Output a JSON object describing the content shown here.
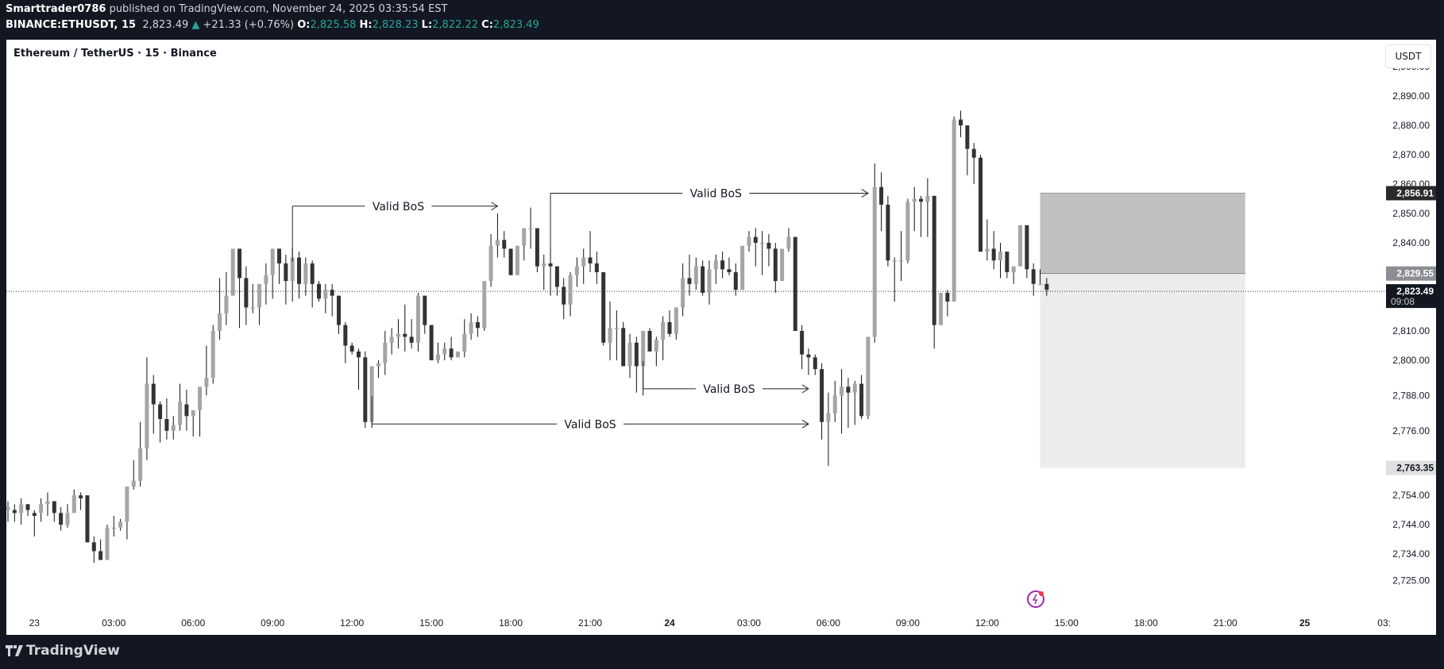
{
  "header": {
    "author": "Smarttrader0786",
    "published_text": "published on TradingView.com, November 24, 2025 03:35:54 EST",
    "symbol": "BINANCE:ETHUSDT, 15",
    "last_price": "2,823.49",
    "change_icon": "triangle-up-icon",
    "change": "+21.33 (+0.76%)",
    "o_label": "O:",
    "o_value": "2,825.58",
    "h_label": "H:",
    "h_value": "2,828.23",
    "l_label": "L:",
    "l_value": "2,822.22",
    "c_label": "C:",
    "c_value": "2,823.49"
  },
  "chart": {
    "title": "Ethereum / TetherUS · 15 · Binance",
    "currency_button": "USDT",
    "colors": {
      "up": "#a5a5a5",
      "down": "#333333",
      "box_top": "#c0c0c0",
      "box_bottom": "#ececec",
      "header_bg": "#131722",
      "teal": "#26a69a"
    },
    "price_labels": [
      {
        "text": "2,856.91",
        "price": 2856.91,
        "style": "dark"
      },
      {
        "text": "2,829.55",
        "price": 2829.55,
        "style": "grey"
      },
      {
        "text": "2,823.49",
        "sub": "09:08",
        "price": 2823.49,
        "style": "navy"
      },
      {
        "text": "2,763.35",
        "price": 2763.35,
        "style": "light"
      }
    ],
    "annotation_label": "Valid BoS",
    "footer_brand": "TradingView"
  },
  "chart_data": {
    "type": "candlestick",
    "title": "Ethereum / TetherUS · 15 · Binance",
    "symbol": "BINANCE:ETHUSDT",
    "interval": "15",
    "yaxis_ticks": [
      "2,900.00",
      "2,890.00",
      "2,880.00",
      "2,870.00",
      "2,860.00",
      "2,850.00",
      "2,840.00",
      "2,810.00",
      "2,800.00",
      "2,788.00",
      "2,776.00",
      "2,754.00",
      "2,744.00",
      "2,734.00",
      "2,725.00"
    ],
    "ytick_values": [
      2900,
      2890,
      2880,
      2870,
      2860,
      2850,
      2840,
      2810,
      2800,
      2788,
      2776,
      2754,
      2744,
      2734,
      2725
    ],
    "xaxis_ticks": [
      "23",
      "03:00",
      "06:00",
      "09:00",
      "12:00",
      "15:00",
      "18:00",
      "21:00",
      "24",
      "03:00",
      "06:00",
      "09:00",
      "12:00",
      "15:00",
      "18:00",
      "21:00",
      "25",
      "03:"
    ],
    "xtick_index": [
      4,
      16,
      28,
      40,
      52,
      64,
      76,
      88,
      100,
      112,
      124,
      136,
      148,
      160,
      172,
      184,
      196,
      208
    ],
    "current_price": 2823.49,
    "countdown": "09:08",
    "box": {
      "top": 2856.91,
      "mid": 2829.55,
      "bottom": 2763.35,
      "start_index": 156,
      "end_index": 187
    },
    "annotations": [
      {
        "label": "Valid BoS",
        "price": 2852.5,
        "from_index": 43,
        "to_index": 74,
        "label_index": 59
      },
      {
        "label": "Valid BoS",
        "price": 2856.9,
        "from_index": 82,
        "to_index": 130,
        "label_index": 107
      },
      {
        "label": "Valid BoS",
        "price": 2790.3,
        "from_index": 96,
        "to_index": 121,
        "label_index": 109
      },
      {
        "label": "Valid BoS",
        "price": 2778.3,
        "from_index": 55,
        "to_index": 121,
        "label_index": 88
      }
    ],
    "candles": [
      [
        2749,
        2752,
        2745,
        2750
      ],
      [
        2749,
        2751,
        2745,
        2748
      ],
      [
        2748,
        2753,
        2744,
        2751
      ],
      [
        2751,
        2751,
        2747,
        2749
      ],
      [
        2748,
        2749,
        2740,
        2747
      ],
      [
        2748,
        2753,
        2745,
        2751
      ],
      [
        2751,
        2755,
        2747,
        2752
      ],
      [
        2752,
        2752,
        2745,
        2748
      ],
      [
        2748,
        2750,
        2742,
        2744
      ],
      [
        2744,
        2751,
        2743,
        2748
      ],
      [
        2748,
        2756,
        2748,
        2754
      ],
      [
        2754,
        2755,
        2749,
        2753
      ],
      [
        2754,
        2754,
        2738,
        2738
      ],
      [
        2738,
        2740,
        2731,
        2735
      ],
      [
        2735,
        2739,
        2733,
        2732
      ],
      [
        2732,
        2744,
        2732,
        2743
      ],
      [
        2743,
        2747,
        2740,
        2743
      ],
      [
        2743,
        2746,
        2742,
        2745
      ],
      [
        2745,
        2757,
        2739,
        2757
      ],
      [
        2757,
        2766,
        2756,
        2759
      ],
      [
        2759,
        2779,
        2757,
        2770
      ],
      [
        2770,
        2801,
        2766,
        2792
      ],
      [
        2792,
        2795,
        2775,
        2785
      ],
      [
        2785,
        2786,
        2772,
        2780
      ],
      [
        2780,
        2787,
        2773,
        2776
      ],
      [
        2776,
        2781,
        2773,
        2778
      ],
      [
        2778,
        2792,
        2776,
        2786
      ],
      [
        2785,
        2790,
        2776,
        2781
      ],
      [
        2781,
        2782,
        2774,
        2783
      ],
      [
        2783,
        2786,
        2774,
        2791
      ],
      [
        2791,
        2805,
        2788,
        2794
      ],
      [
        2794,
        2812,
        2792,
        2810
      ],
      [
        2810,
        2828,
        2807,
        2816
      ],
      [
        2816,
        2830,
        2812,
        2822
      ],
      [
        2822,
        2835,
        2822,
        2838
      ],
      [
        2838,
        2833,
        2811,
        2828
      ],
      [
        2828,
        2832,
        2812,
        2818
      ],
      [
        2818,
        2826,
        2816,
        2818
      ],
      [
        2818,
        2826,
        2812,
        2826
      ],
      [
        2826,
        2833,
        2819,
        2829
      ],
      [
        2829,
        2836,
        2821,
        2838
      ],
      [
        2838,
        2838,
        2826,
        2833
      ],
      [
        2833,
        2836,
        2819,
        2827
      ],
      [
        2827,
        2838,
        2820,
        2835
      ],
      [
        2835,
        2837,
        2821,
        2826
      ],
      [
        2826,
        2835,
        2822,
        2833
      ],
      [
        2833,
        2834,
        2818,
        2826
      ],
      [
        2826,
        2827,
        2820,
        2821
      ],
      [
        2821,
        2826,
        2816,
        2824
      ],
      [
        2824,
        2826,
        2815,
        2822
      ],
      [
        2822,
        2822,
        2809,
        2812
      ],
      [
        2812,
        2813,
        2799,
        2805
      ],
      [
        2805,
        2806,
        2802,
        2803
      ],
      [
        2803,
        2804,
        2790,
        2801
      ],
      [
        2801,
        2803,
        2777,
        2779
      ],
      [
        2779,
        2796,
        2777,
        2798
      ],
      [
        2798,
        2800,
        2794,
        2799
      ],
      [
        2799,
        2810,
        2795,
        2806
      ],
      [
        2806,
        2811,
        2802,
        2808
      ],
      [
        2808,
        2814,
        2804,
        2809
      ],
      [
        2809,
        2819,
        2803,
        2808
      ],
      [
        2808,
        2814,
        2804,
        2806
      ],
      [
        2806,
        2823,
        2803,
        2822
      ],
      [
        2822,
        2822,
        2809,
        2812
      ],
      [
        2812,
        2812,
        2801,
        2800
      ],
      [
        2800,
        2806,
        2799,
        2802
      ],
      [
        2802,
        2806,
        2800,
        2804
      ],
      [
        2804,
        2808,
        2800,
        2801
      ],
      [
        2801,
        2803,
        2801,
        2803
      ],
      [
        2803,
        2814,
        2801,
        2809
      ],
      [
        2809,
        2816,
        2807,
        2813
      ],
      [
        2813,
        2815,
        2808,
        2811
      ],
      [
        2811,
        2825,
        2810,
        2827
      ],
      [
        2827,
        2843,
        2825,
        2839
      ],
      [
        2839,
        2850,
        2835,
        2841
      ],
      [
        2841,
        2844,
        2835,
        2838
      ],
      [
        2838,
        2838,
        2829,
        2829
      ],
      [
        2829,
        2839,
        2829,
        2839
      ],
      [
        2839,
        2843,
        2834,
        2845
      ],
      [
        2845,
        2852,
        2838,
        2845
      ],
      [
        2845,
        2845,
        2830,
        2832
      ],
      [
        2832,
        2836,
        2824,
        2833
      ],
      [
        2833,
        2838,
        2822,
        2832
      ],
      [
        2832,
        2832,
        2822,
        2825
      ],
      [
        2825,
        2828,
        2814,
        2819
      ],
      [
        2819,
        2830,
        2815,
        2829
      ],
      [
        2829,
        2835,
        2825,
        2832
      ],
      [
        2832,
        2838,
        2826,
        2835
      ],
      [
        2835,
        2844,
        2830,
        2833
      ],
      [
        2833,
        2837,
        2826,
        2830
      ],
      [
        2830,
        2830,
        2805,
        2806
      ],
      [
        2806,
        2820,
        2800,
        2811
      ],
      [
        2811,
        2817,
        2800,
        2811
      ],
      [
        2811,
        2813,
        2798,
        2798
      ],
      [
        2798,
        2809,
        2794,
        2806
      ],
      [
        2806,
        2808,
        2789,
        2798
      ],
      [
        2798,
        2810,
        2788,
        2810
      ],
      [
        2810,
        2811,
        2805,
        2803
      ],
      [
        2803,
        2808,
        2798,
        2807
      ],
      [
        2807,
        2815,
        2800,
        2813
      ],
      [
        2813,
        2817,
        2808,
        2809
      ],
      [
        2809,
        2818,
        2807,
        2818
      ],
      [
        2818,
        2833,
        2815,
        2828
      ],
      [
        2828,
        2836,
        2822,
        2826
      ],
      [
        2826,
        2835,
        2824,
        2832
      ],
      [
        2832,
        2834,
        2822,
        2823
      ],
      [
        2823,
        2834,
        2819,
        2831
      ],
      [
        2831,
        2836,
        2826,
        2834
      ],
      [
        2834,
        2837,
        2828,
        2831
      ],
      [
        2831,
        2835,
        2829,
        2830
      ],
      [
        2830,
        2833,
        2822,
        2824
      ],
      [
        2824,
        2838,
        2826,
        2839
      ],
      [
        2839,
        2844,
        2837,
        2842
      ],
      [
        2842,
        2845,
        2832,
        2840
      ],
      [
        2840,
        2844,
        2829,
        2840
      ],
      [
        2840,
        2843,
        2832,
        2838
      ],
      [
        2838,
        2840,
        2823,
        2827
      ],
      [
        2827,
        2835,
        2827,
        2838
      ],
      [
        2838,
        2845,
        2837,
        2842
      ],
      [
        2842,
        2842,
        2810,
        2810
      ],
      [
        2810,
        2812,
        2797,
        2802
      ],
      [
        2802,
        2804,
        2795,
        2801
      ],
      [
        2801,
        2802,
        2795,
        2797
      ],
      [
        2797,
        2799,
        2773,
        2779
      ],
      [
        2779,
        2789,
        2764,
        2782
      ],
      [
        2782,
        2793,
        2779,
        2788
      ],
      [
        2788,
        2797,
        2775,
        2791
      ],
      [
        2791,
        2794,
        2777,
        2789
      ],
      [
        2789,
        2793,
        2778,
        2792
      ],
      [
        2792,
        2795,
        2780,
        2781
      ],
      [
        2781,
        2807,
        2780,
        2808
      ],
      [
        2808,
        2867,
        2806,
        2859
      ],
      [
        2859,
        2864,
        2844,
        2853
      ],
      [
        2853,
        2856,
        2832,
        2834
      ],
      [
        2834,
        2835,
        2820,
        2834
      ],
      [
        2834,
        2844,
        2827,
        2834
      ],
      [
        2834,
        2855,
        2833,
        2854
      ],
      [
        2854,
        2859,
        2844,
        2855
      ],
      [
        2855,
        2856,
        2842,
        2854
      ],
      [
        2854,
        2862,
        2842,
        2856
      ],
      [
        2856,
        2856,
        2804,
        2812
      ],
      [
        2812,
        2822,
        2812,
        2823
      ],
      [
        2823,
        2824,
        2815,
        2820
      ],
      [
        2820,
        2883,
        2820,
        2882
      ],
      [
        2882,
        2885,
        2876,
        2880
      ],
      [
        2880,
        2879,
        2863,
        2872
      ],
      [
        2872,
        2874,
        2860,
        2869
      ],
      [
        2869,
        2870,
        2852,
        2837
      ],
      [
        2837,
        2848,
        2834,
        2838
      ],
      [
        2838,
        2844,
        2831,
        2834
      ],
      [
        2834,
        2840,
        2828,
        2837
      ],
      [
        2837,
        2837,
        2828,
        2830
      ],
      [
        2830,
        2832,
        2826,
        2832
      ],
      [
        2832,
        2846,
        2832,
        2846
      ],
      [
        2846,
        2846,
        2828,
        2831
      ],
      [
        2831,
        2833,
        2822,
        2826
      ],
      [
        2826,
        2831,
        2826,
        2826
      ],
      [
        2826,
        2828,
        2822,
        2824
      ]
    ]
  }
}
